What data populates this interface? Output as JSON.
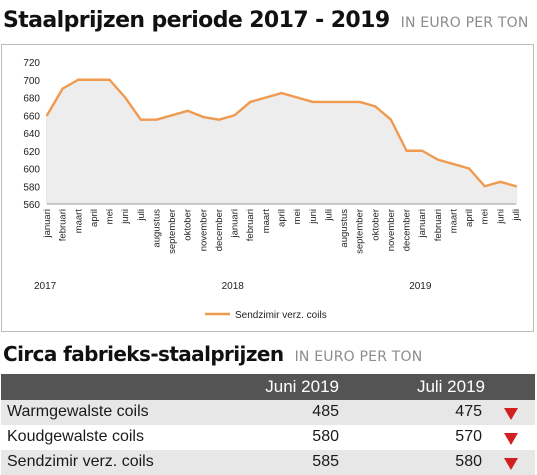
{
  "header": {
    "title": "Staalprijzen periode 2017 - 2019",
    "unit": "IN EURO PER TON"
  },
  "chart_data": {
    "type": "line",
    "x": [
      "januari",
      "februari",
      "maart",
      "april",
      "mei",
      "juni",
      "juli",
      "augustus",
      "september",
      "oktober",
      "november",
      "december",
      "januari",
      "februari",
      "maart",
      "april",
      "mei",
      "juni",
      "juli",
      "augustus",
      "september",
      "oktober",
      "november",
      "december",
      "januari",
      "februari",
      "maart",
      "april",
      "mei",
      "juni",
      "juli"
    ],
    "years": [
      {
        "label": "2017",
        "start_index": 0
      },
      {
        "label": "2018",
        "start_index": 12
      },
      {
        "label": "2019",
        "start_index": 24
      }
    ],
    "series": [
      {
        "name": "Sendzimir verz. coils",
        "color": "#ef9a4f",
        "values": [
          660,
          690,
          700,
          700,
          700,
          680,
          655,
          655,
          660,
          665,
          658,
          655,
          660,
          675,
          680,
          685,
          680,
          675,
          675,
          675,
          675,
          670,
          655,
          620,
          620,
          610,
          605,
          600,
          580,
          585,
          580
        ]
      }
    ],
    "ylim": [
      560,
      720
    ],
    "yticks": [
      560,
      580,
      600,
      620,
      640,
      660,
      680,
      700,
      720
    ],
    "grid": "vertical",
    "legend": "bottom",
    "xlabel": "",
    "ylabel": ""
  },
  "section2": {
    "title": "Circa fabrieks-staalprijzen",
    "unit": "IN EURO PER TON"
  },
  "table": {
    "columns": [
      "",
      "Juni 2019",
      "Juli 2019"
    ],
    "rows": [
      {
        "name": "Warmgewalste coils",
        "jun": "485",
        "jul": "475",
        "trend": "down"
      },
      {
        "name": "Koudgewalste coils",
        "jun": "580",
        "jul": "570",
        "trend": "down"
      },
      {
        "name": "Sendzimir verz. coils",
        "jun": "585",
        "jul": "580",
        "trend": "down"
      }
    ],
    "trend_color": "#d21f1f",
    "header_bg": "#545454"
  }
}
